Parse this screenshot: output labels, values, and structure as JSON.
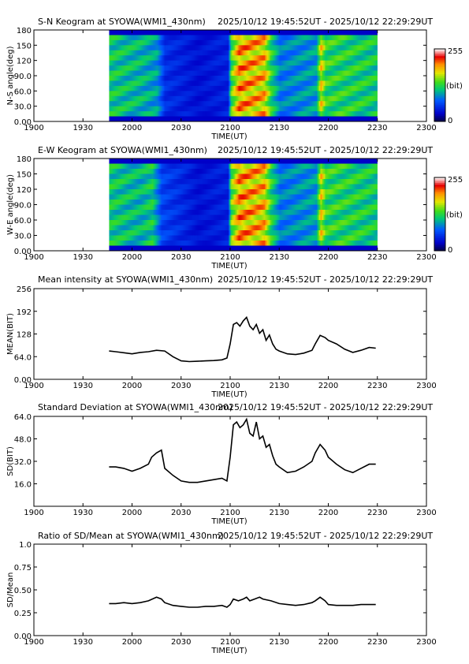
{
  "chart_data": [
    {
      "type": "heatmap",
      "title": "S-N Keogram at SYOWA(WMI1_430nm)",
      "time_range": "2025/10/12 19:45:52UT - 2025/10/12 22:29:29UT",
      "xlabel": "TIME(UT)",
      "ylabel": "N-S angle(deg)",
      "x_ticks": [
        "1900",
        "1930",
        "2000",
        "2030",
        "2100",
        "2130",
        "2200",
        "2230",
        "2300"
      ],
      "y_ticks": [
        "0.00",
        "30.0",
        "60.0",
        "90.0",
        "120",
        "150",
        "180"
      ],
      "ylim": [
        0,
        180
      ],
      "data_x_range": [
        "1945:52",
        "2229:29"
      ],
      "colorbar": {
        "min": "0",
        "max": "255",
        "unit": "(bit)"
      },
      "intensity_profile": [
        {
          "t": 1946,
          "v": 0.55
        },
        {
          "t": 2005,
          "v": 0.5
        },
        {
          "t": 2015,
          "v": 0.45
        },
        {
          "t": 2020,
          "v": 0.25
        },
        {
          "t": 2040,
          "v": 0.18
        },
        {
          "t": 2058,
          "v": 0.22
        },
        {
          "t": 2100,
          "v": 0.62
        },
        {
          "t": 2105,
          "v": 0.9
        },
        {
          "t": 2120,
          "v": 0.85
        },
        {
          "t": 2124,
          "v": 0.6
        },
        {
          "t": 2130,
          "v": 0.4
        },
        {
          "t": 2152,
          "v": 0.45
        },
        {
          "t": 2155,
          "v": 0.8
        },
        {
          "t": 2158,
          "v": 0.6
        },
        {
          "t": 2229,
          "v": 0.55
        }
      ]
    },
    {
      "type": "heatmap",
      "title": "E-W Keogram at SYOWA(WMI1_430nm)",
      "time_range": "2025/10/12 19:45:52UT - 2025/10/12 22:29:29UT",
      "xlabel": "TIME(UT)",
      "ylabel": "W-E angle(deg)",
      "x_ticks": [
        "1900",
        "1930",
        "2000",
        "2030",
        "2100",
        "2130",
        "2200",
        "2230",
        "2300"
      ],
      "y_ticks": [
        "0.00",
        "30.0",
        "60.0",
        "90.0",
        "120",
        "150",
        "180"
      ],
      "ylim": [
        0,
        180
      ],
      "data_x_range": [
        "1945:52",
        "2229:29"
      ],
      "colorbar": {
        "min": "0",
        "max": "255",
        "unit": "(bit)"
      },
      "intensity_profile": [
        {
          "t": 1946,
          "v": 0.55
        },
        {
          "t": 2005,
          "v": 0.5
        },
        {
          "t": 2012,
          "v": 0.55
        },
        {
          "t": 2018,
          "v": 0.3
        },
        {
          "t": 2040,
          "v": 0.18
        },
        {
          "t": 2058,
          "v": 0.22
        },
        {
          "t": 2100,
          "v": 0.65
        },
        {
          "t": 2105,
          "v": 0.9
        },
        {
          "t": 2120,
          "v": 0.85
        },
        {
          "t": 2124,
          "v": 0.6
        },
        {
          "t": 2130,
          "v": 0.4
        },
        {
          "t": 2152,
          "v": 0.45
        },
        {
          "t": 2155,
          "v": 0.8
        },
        {
          "t": 2158,
          "v": 0.6
        },
        {
          "t": 2229,
          "v": 0.55
        }
      ]
    },
    {
      "type": "line",
      "title": "Mean intensity at SYOWA(WMI1_430nm)",
      "time_range": "2025/10/12 19:45:52UT - 2025/10/12 22:29:29UT",
      "xlabel": "TIME(UT)",
      "ylabel": "MEAN(BIT)",
      "x_ticks": [
        "1900",
        "1930",
        "2000",
        "2030",
        "2100",
        "2130",
        "2200",
        "2230",
        "2300"
      ],
      "y_ticks": [
        "0.00",
        "64.0",
        "128",
        "192",
        "256"
      ],
      "ylim": [
        0,
        256
      ],
      "series": [
        {
          "x": [
            1946,
            1950,
            1955,
            2000,
            2005,
            2010,
            2015,
            2020,
            2025,
            2030,
            2035,
            2040,
            2045,
            2050,
            2055,
            2058,
            2100,
            2102,
            2104,
            2106,
            2108,
            2110,
            2112,
            2114,
            2116,
            2118,
            2120,
            2122,
            2124,
            2126,
            2128,
            2130,
            2135,
            2140,
            2145,
            2150,
            2152,
            2155,
            2158,
            2200,
            2205,
            2210,
            2215,
            2220,
            2225,
            2229
          ],
          "y": [
            80,
            78,
            75,
            72,
            76,
            78,
            82,
            80,
            64,
            52,
            50,
            51,
            52,
            53,
            55,
            60,
            100,
            155,
            160,
            150,
            165,
            175,
            150,
            140,
            155,
            130,
            140,
            110,
            125,
            100,
            85,
            80,
            72,
            70,
            74,
            82,
            100,
            124,
            118,
            110,
            100,
            85,
            76,
            82,
            90,
            88
          ]
        }
      ]
    },
    {
      "type": "line",
      "title": "Standard Deviation at SYOWA(WMI1_430nm)",
      "time_range": "2025/10/12 19:45:52UT - 2025/10/12 22:29:29UT",
      "xlabel": "TIME(UT)",
      "ylabel": "SD(BIT)",
      "x_ticks": [
        "1900",
        "1930",
        "2000",
        "2030",
        "2100",
        "2130",
        "2200",
        "2230",
        "2300"
      ],
      "y_ticks": [
        "16.0",
        "32.0",
        "48.0",
        "64.0"
      ],
      "ylim": [
        0,
        64
      ],
      "series": [
        {
          "x": [
            1946,
            1950,
            1955,
            2000,
            2005,
            2010,
            2012,
            2015,
            2018,
            2020,
            2025,
            2030,
            2035,
            2040,
            2045,
            2050,
            2055,
            2058,
            2100,
            2102,
            2104,
            2106,
            2108,
            2110,
            2112,
            2114,
            2116,
            2118,
            2120,
            2122,
            2124,
            2126,
            2128,
            2130,
            2135,
            2140,
            2145,
            2150,
            2152,
            2155,
            2158,
            2200,
            2205,
            2210,
            2215,
            2220,
            2225,
            2229
          ],
          "y": [
            28,
            28,
            27,
            25,
            27,
            30,
            35,
            38,
            40,
            27,
            22,
            18,
            17,
            17,
            18,
            19,
            20,
            18,
            35,
            58,
            60,
            56,
            58,
            62,
            52,
            50,
            60,
            48,
            50,
            42,
            44,
            36,
            30,
            28,
            24,
            25,
            28,
            32,
            38,
            44,
            40,
            35,
            30,
            26,
            24,
            27,
            30,
            30
          ]
        }
      ]
    },
    {
      "type": "line",
      "title": "Ratio of SD/Mean at SYOWA(WMI1_430nm)",
      "time_range": "2025/10/12 19:45:52UT - 2025/10/12 22:29:29UT",
      "xlabel": "TIME(UT)",
      "ylabel": "SD/Mean",
      "x_ticks": [
        "1900",
        "1930",
        "2000",
        "2030",
        "2100",
        "2130",
        "2200",
        "2230",
        "2300"
      ],
      "y_ticks": [
        "0.00",
        "0.25",
        "0.50",
        "0.75",
        "1.0"
      ],
      "ylim": [
        0,
        1.0
      ],
      "series": [
        {
          "x": [
            1946,
            1950,
            1955,
            2000,
            2005,
            2010,
            2015,
            2018,
            2020,
            2025,
            2030,
            2035,
            2040,
            2045,
            2050,
            2055,
            2058,
            2100,
            2102,
            2105,
            2108,
            2110,
            2112,
            2115,
            2118,
            2120,
            2125,
            2130,
            2135,
            2140,
            2145,
            2150,
            2152,
            2155,
            2158,
            2200,
            2205,
            2210,
            2215,
            2220,
            2225,
            2229
          ],
          "y": [
            0.35,
            0.35,
            0.36,
            0.35,
            0.36,
            0.38,
            0.42,
            0.4,
            0.36,
            0.33,
            0.32,
            0.31,
            0.31,
            0.32,
            0.32,
            0.33,
            0.31,
            0.34,
            0.4,
            0.38,
            0.4,
            0.42,
            0.38,
            0.4,
            0.42,
            0.4,
            0.38,
            0.35,
            0.34,
            0.33,
            0.34,
            0.36,
            0.38,
            0.42,
            0.38,
            0.34,
            0.33,
            0.33,
            0.33,
            0.34,
            0.34,
            0.34
          ]
        }
      ]
    }
  ]
}
